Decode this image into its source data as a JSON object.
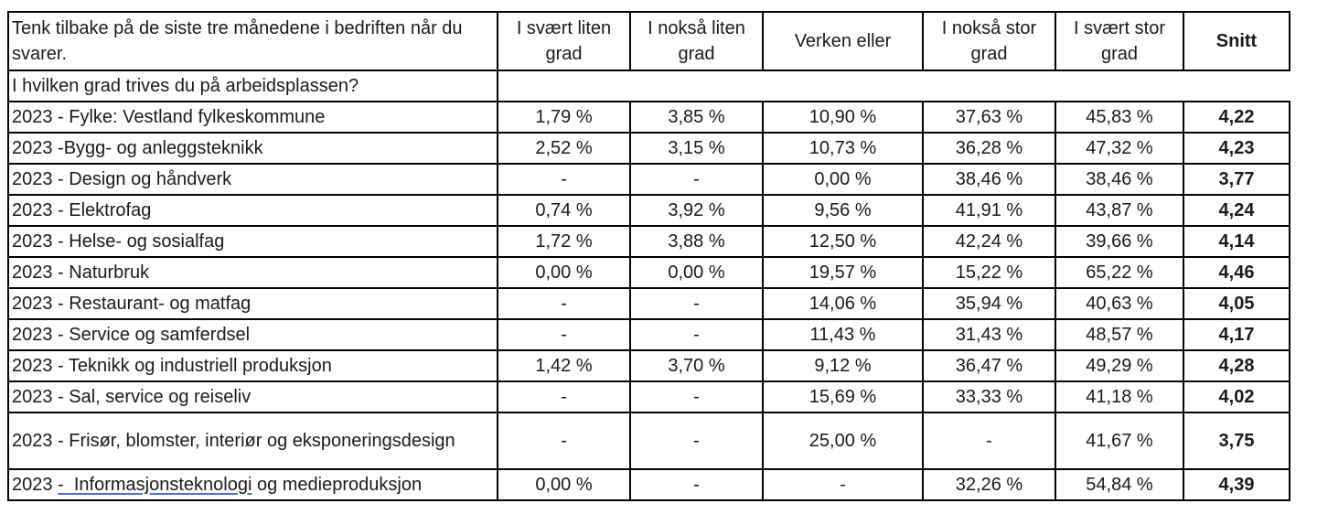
{
  "header": {
    "question": "Tenk tilbake på de siste tre månedene i bedriften når du svarer.",
    "columns": [
      "I svært liten grad",
      "I nokså liten grad",
      "Verken eller",
      "I nokså stor grad",
      "I svært stor grad"
    ],
    "average": "Snitt"
  },
  "section": {
    "label": "I hvilken grad trives du på arbeidsplassen?"
  },
  "rows": [
    {
      "label": "2023 - Fylke: Vestland fylkeskommune",
      "values": [
        "1,79 %",
        "3,85 %",
        "10,90 %",
        "37,63 %",
        "45,83 %"
      ],
      "avg": "4,22"
    },
    {
      "label": "2023 -Bygg- og anleggsteknikk",
      "values": [
        "2,52 %",
        "3,15 %",
        "10,73 %",
        "36,28 %",
        "47,32 %"
      ],
      "avg": "4,23"
    },
    {
      "label": "2023 - Design og håndverk",
      "values": [
        "-",
        "-",
        "0,00 %",
        "38,46 %",
        "38,46 %"
      ],
      "avg": "3,77"
    },
    {
      "label": "2023 - Elektrofag",
      "values": [
        "0,74 %",
        "3,92 %",
        "9,56 %",
        "41,91 %",
        "43,87 %"
      ],
      "avg": "4,24"
    },
    {
      "label": "2023 - Helse- og sosialfag",
      "values": [
        "1,72 %",
        "3,88 %",
        "12,50 %",
        "42,24 %",
        "39,66 %"
      ],
      "avg": "4,14"
    },
    {
      "label": "2023 - Naturbruk",
      "values": [
        "0,00 %",
        "0,00 %",
        "19,57 %",
        "15,22 %",
        "65,22 %"
      ],
      "avg": "4,46"
    },
    {
      "label": "2023 - Restaurant- og matfag",
      "values": [
        "-",
        "-",
        "14,06 %",
        "35,94 %",
        "40,63 %"
      ],
      "avg": "4,05"
    },
    {
      "label": "2023 - Service og samferdsel",
      "values": [
        "-",
        "-",
        "11,43 %",
        "31,43 %",
        "48,57 %"
      ],
      "avg": "4,17"
    },
    {
      "label": "2023 - Teknikk og industriell produksjon",
      "values": [
        "1,42 %",
        "3,70 %",
        "9,12 %",
        "36,47 %",
        "49,29 %"
      ],
      "avg": "4,28"
    },
    {
      "label": "2023 - Sal, service og reiseliv",
      "values": [
        "-",
        "-",
        "15,69 %",
        "33,33 %",
        "41,18 %"
      ],
      "avg": "4,02"
    },
    {
      "label": "2023 - Frisør, blomster, interiør og eksponeringsdesign",
      "values": [
        "-",
        "-",
        "25,00 %",
        "-",
        "41,67 %"
      ],
      "avg": "3,75"
    },
    {
      "label_prefix": "2023 ",
      "label_link": "-  Informasjonsteknologi",
      "label_suffix": " og medieproduksjon",
      "values": [
        "0,00 %",
        "-",
        "-",
        "32,26 %",
        "54,84 %"
      ],
      "avg": "4,39"
    }
  ]
}
